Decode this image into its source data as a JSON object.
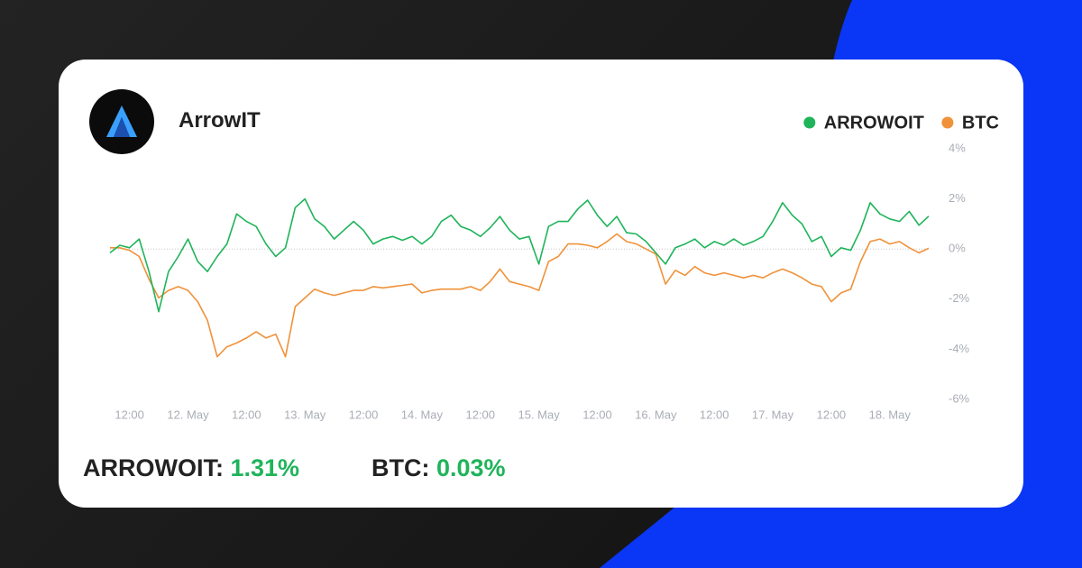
{
  "brand": "ArrowIT",
  "summary": [
    {
      "label": "ARROWOIT:",
      "value": "1.31%"
    },
    {
      "label": "BTC:",
      "value": "0.03%"
    }
  ],
  "chart_data": {
    "type": "line",
    "categories": [
      null,
      null,
      "12:00",
      null,
      null,
      null,
      null,
      null,
      "12. May",
      null,
      null,
      null,
      null,
      null,
      "12:00",
      null,
      null,
      null,
      null,
      null,
      "13. May",
      null,
      null,
      null,
      null,
      null,
      "12:00",
      null,
      null,
      null,
      null,
      null,
      "14. May",
      null,
      null,
      null,
      null,
      null,
      "12:00",
      null,
      null,
      null,
      null,
      null,
      "15. May",
      null,
      null,
      null,
      null,
      null,
      "12:00",
      null,
      null,
      null,
      null,
      null,
      "16. May",
      null,
      null,
      null,
      null,
      null,
      "12:00",
      null,
      null,
      null,
      null,
      null,
      "17. May",
      null,
      null,
      null,
      null,
      null,
      "12:00",
      null,
      null,
      null,
      null,
      null,
      "18. May",
      null,
      null,
      null,
      null
    ],
    "series": [
      {
        "name": "ARROWOIT",
        "color": "#1fb45a",
        "values": [
          -0.15,
          0.15,
          0.05,
          0.4,
          -0.9,
          -2.5,
          -0.9,
          -0.3,
          0.4,
          -0.5,
          -0.9,
          -0.3,
          0.2,
          1.4,
          1.1,
          0.9,
          0.2,
          -0.3,
          0.05,
          1.65,
          2.0,
          1.2,
          0.9,
          0.4,
          0.75,
          1.1,
          0.75,
          0.2,
          0.4,
          0.5,
          0.35,
          0.5,
          0.2,
          0.5,
          1.1,
          1.35,
          0.9,
          0.75,
          0.5,
          0.85,
          1.3,
          0.75,
          0.4,
          0.5,
          -0.6,
          0.9,
          1.1,
          1.1,
          1.6,
          1.95,
          1.35,
          0.9,
          1.3,
          0.65,
          0.6,
          0.3,
          -0.15,
          -0.6,
          0.05,
          0.2,
          0.4,
          0.05,
          0.3,
          0.15,
          0.4,
          0.15,
          0.3,
          0.5,
          1.1,
          1.85,
          1.35,
          1.0,
          0.3,
          0.5,
          -0.3,
          0.05,
          -0.05,
          0.75,
          1.85,
          1.4,
          1.2,
          1.1,
          1.5,
          0.95,
          1.31
        ]
      },
      {
        "name": "BTC",
        "color": "#f0923a",
        "values": [
          0.05,
          0.05,
          -0.05,
          -0.3,
          -1.2,
          -1.95,
          -1.65,
          -1.5,
          -1.65,
          -2.1,
          -2.85,
          -4.3,
          -3.9,
          -3.75,
          -3.55,
          -3.3,
          -3.55,
          -3.4,
          -4.3,
          -2.3,
          -1.95,
          -1.6,
          -1.75,
          -1.85,
          -1.75,
          -1.65,
          -1.65,
          -1.5,
          -1.55,
          -1.5,
          -1.45,
          -1.4,
          -1.75,
          -1.65,
          -1.6,
          -1.6,
          -1.6,
          -1.5,
          -1.65,
          -1.3,
          -0.8,
          -1.3,
          -1.4,
          -1.5,
          -1.65,
          -0.5,
          -0.3,
          0.2,
          0.2,
          0.15,
          0.05,
          0.3,
          0.6,
          0.3,
          0.2,
          0,
          -0.2,
          -1.4,
          -0.85,
          -1.05,
          -0.7,
          -0.95,
          -1.05,
          -0.95,
          -1.05,
          -1.15,
          -1.05,
          -1.15,
          -0.95,
          -0.8,
          -0.95,
          -1.15,
          -1.4,
          -1.5,
          -2.1,
          -1.75,
          -1.6,
          -0.5,
          0.3,
          0.4,
          0.2,
          0.3,
          0.05,
          -0.15,
          0.03
        ]
      }
    ],
    "ylim": [
      -6,
      4
    ],
    "yticks": [
      {
        "value": 4,
        "label": "4%"
      },
      {
        "value": 2,
        "label": "2%"
      },
      {
        "value": 0,
        "label": "0%"
      },
      {
        "value": -2,
        "label": "-2%"
      },
      {
        "value": -4,
        "label": "-4%"
      },
      {
        "value": -6,
        "label": "-6%"
      }
    ],
    "legend": "top-right"
  }
}
